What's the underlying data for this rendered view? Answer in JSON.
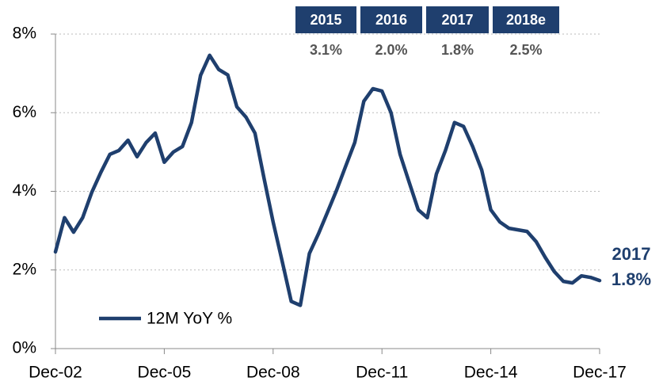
{
  "chart_data": {
    "type": "line",
    "categories": [
      "Dec-02",
      null,
      null,
      null,
      null,
      null,
      null,
      null,
      null,
      null,
      null,
      null,
      "Dec-05",
      null,
      null,
      null,
      null,
      null,
      null,
      null,
      null,
      null,
      null,
      null,
      "Dec-08",
      null,
      null,
      null,
      null,
      null,
      null,
      null,
      null,
      null,
      null,
      null,
      "Dec-11",
      null,
      null,
      null,
      null,
      null,
      null,
      null,
      null,
      null,
      null,
      null,
      "Dec-14",
      null,
      null,
      null,
      null,
      null,
      null,
      null,
      null,
      null,
      null,
      null,
      "Dec-17"
    ],
    "series": [
      {
        "name": "12M YoY %",
        "color": "#1f3f6e",
        "values": [
          2.46,
          3.33,
          2.96,
          3.33,
          3.97,
          4.48,
          4.94,
          5.04,
          5.3,
          4.88,
          5.24,
          5.48,
          4.74,
          5.0,
          5.14,
          5.75,
          6.95,
          7.46,
          7.1,
          6.96,
          6.15,
          5.89,
          5.48,
          4.33,
          3.22,
          2.22,
          1.2,
          1.1,
          2.42,
          2.92,
          3.47,
          4.03,
          4.64,
          5.24,
          6.29,
          6.61,
          6.55,
          6.0,
          4.94,
          4.23,
          3.53,
          3.33,
          4.44,
          5.04,
          5.75,
          5.65,
          5.14,
          4.54,
          3.53,
          3.22,
          3.06,
          3.02,
          2.98,
          2.72,
          2.32,
          1.96,
          1.71,
          1.67,
          1.85,
          1.81,
          1.73
        ]
      }
    ],
    "ylim": [
      0,
      8
    ],
    "yticks": [
      {
        "value": 0,
        "label": "0%"
      },
      {
        "value": 2,
        "label": "2%"
      },
      {
        "value": 4,
        "label": "4%"
      },
      {
        "value": 6,
        "label": "6%"
      },
      {
        "value": 8,
        "label": "8%"
      }
    ],
    "grid": true,
    "legend": "lower left",
    "annotation": {
      "year": "2017",
      "value": 1.8,
      "value_label": "1.8%"
    },
    "table": {
      "headers": [
        "2015",
        "2016",
        "2017",
        "2018e"
      ],
      "values": [
        3.1,
        2.0,
        1.8,
        2.5
      ],
      "value_labels": [
        "3.1%",
        "2.0%",
        "1.8%",
        "2.5%"
      ]
    }
  }
}
